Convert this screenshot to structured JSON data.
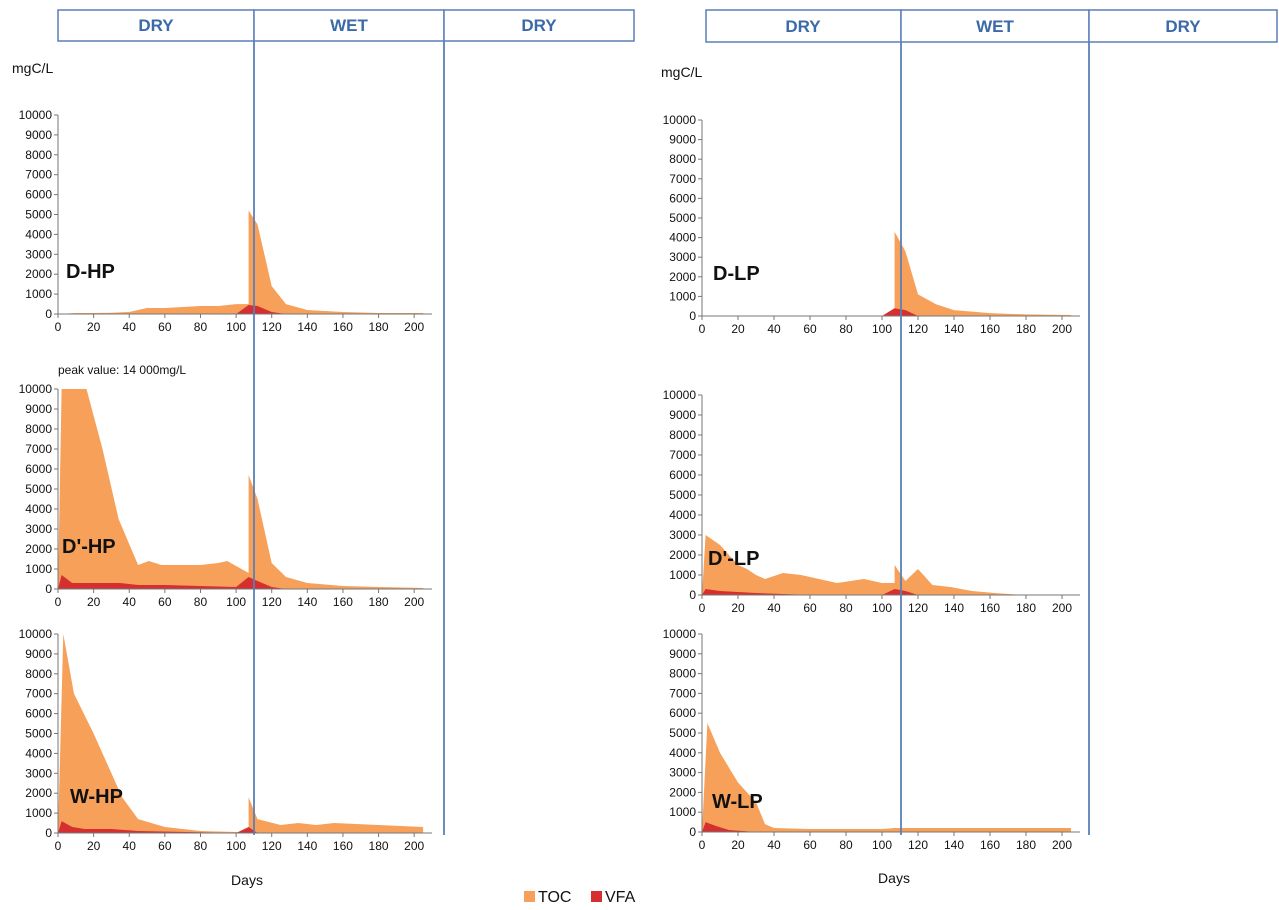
{
  "colors": {
    "toc": "#f7a05a",
    "vfa": "#d62f2f",
    "phase_border": "#5a7fb8",
    "phase_text": "#3b6aa8"
  },
  "header": {
    "left": [
      "DRY",
      "WET",
      "DRY"
    ],
    "right": [
      "DRY",
      "WET",
      "DRY"
    ]
  },
  "annotations": {
    "unit_left": "mgC/L",
    "unit_right": "mgC/L",
    "peak_note": "peak value: 14 000mg/L"
  },
  "xlabel": "Days",
  "legend": [
    {
      "name": "TOC",
      "color": "#f7a05a"
    },
    {
      "name": "VFA",
      "color": "#d62f2f"
    }
  ],
  "chart_data": [
    {
      "id": "D-HP",
      "type": "area",
      "label": "D-HP",
      "xlim": [
        0,
        210
      ],
      "ylim": [
        0,
        10000
      ],
      "xticks": [
        0,
        20,
        40,
        60,
        80,
        100,
        120,
        140,
        160,
        180,
        200
      ],
      "yticks": [
        0,
        1000,
        2000,
        3000,
        4000,
        5000,
        6000,
        7000,
        8000,
        9000,
        10000
      ],
      "series": [
        {
          "name": "TOC",
          "x": [
            0,
            10,
            20,
            30,
            40,
            50,
            60,
            70,
            80,
            90,
            100,
            107,
            107,
            112,
            120,
            128,
            140,
            160,
            180,
            205
          ],
          "values": [
            0,
            50,
            50,
            60,
            100,
            300,
            300,
            350,
            400,
            400,
            500,
            500,
            5200,
            4500,
            1400,
            500,
            200,
            100,
            50,
            50
          ]
        },
        {
          "name": "VFA",
          "x": [
            0,
            100,
            107,
            112,
            120,
            128,
            205
          ],
          "values": [
            0,
            0,
            450,
            400,
            100,
            0,
            0
          ]
        }
      ]
    },
    {
      "id": "D'-HP",
      "type": "area",
      "label": "D'-HP",
      "xlim": [
        0,
        210
      ],
      "ylim": [
        0,
        10000
      ],
      "xticks": [
        0,
        20,
        40,
        60,
        80,
        100,
        120,
        140,
        160,
        180,
        200
      ],
      "yticks": [
        0,
        1000,
        2000,
        3000,
        4000,
        5000,
        6000,
        7000,
        8000,
        9000,
        10000
      ],
      "series": [
        {
          "name": "TOC",
          "x": [
            0,
            2,
            16,
            25,
            34,
            45,
            51,
            58,
            68,
            80,
            90,
            95,
            107,
            107,
            112,
            120,
            128,
            140,
            160,
            180,
            205
          ],
          "values": [
            0,
            10000,
            10000,
            7000,
            3500,
            1200,
            1400,
            1200,
            1200,
            1200,
            1300,
            1400,
            800,
            5700,
            4500,
            1300,
            600,
            300,
            150,
            100,
            50
          ]
        },
        {
          "name": "VFA",
          "x": [
            0,
            2,
            8,
            20,
            35,
            45,
            60,
            80,
            100,
            107,
            112,
            120,
            128,
            205
          ],
          "values": [
            0,
            700,
            300,
            300,
            300,
            200,
            200,
            150,
            100,
            600,
            400,
            100,
            0,
            0
          ]
        }
      ]
    },
    {
      "id": "W-HP",
      "type": "area",
      "label": "W-HP",
      "xlim": [
        0,
        210
      ],
      "ylim": [
        0,
        10000
      ],
      "xticks": [
        0,
        20,
        40,
        60,
        80,
        100,
        120,
        140,
        160,
        180,
        200
      ],
      "yticks": [
        0,
        1000,
        2000,
        3000,
        4000,
        5000,
        6000,
        7000,
        8000,
        9000,
        10000
      ],
      "series": [
        {
          "name": "TOC",
          "x": [
            0,
            3,
            9,
            20,
            30,
            36,
            45,
            60,
            80,
            100,
            107,
            107,
            112,
            125,
            135,
            145,
            155,
            180,
            205
          ],
          "values": [
            0,
            10000,
            7000,
            5000,
            3000,
            1800,
            700,
            300,
            100,
            50,
            50,
            1800,
            700,
            400,
            500,
            400,
            500,
            400,
            300
          ]
        },
        {
          "name": "VFA",
          "x": [
            0,
            2,
            8,
            15,
            30,
            45,
            100,
            107,
            112,
            205
          ],
          "values": [
            0,
            600,
            300,
            200,
            200,
            100,
            0,
            300,
            0,
            0
          ]
        }
      ]
    },
    {
      "id": "D-LP",
      "type": "area",
      "label": "D-LP",
      "xlim": [
        0,
        210
      ],
      "ylim": [
        0,
        10000
      ],
      "xticks": [
        0,
        20,
        40,
        60,
        80,
        100,
        120,
        140,
        160,
        180,
        200
      ],
      "yticks": [
        0,
        1000,
        2000,
        3000,
        4000,
        5000,
        6000,
        7000,
        8000,
        9000,
        10000
      ],
      "series": [
        {
          "name": "TOC",
          "x": [
            0,
            100,
            107,
            107,
            113,
            120,
            130,
            140,
            160,
            180,
            205
          ],
          "values": [
            0,
            0,
            100,
            4300,
            3300,
            1100,
            600,
            300,
            150,
            80,
            50
          ]
        },
        {
          "name": "VFA",
          "x": [
            0,
            100,
            107,
            113,
            120,
            205
          ],
          "values": [
            0,
            0,
            400,
            300,
            0,
            0
          ]
        }
      ]
    },
    {
      "id": "D'-LP",
      "type": "area",
      "label": "D'-LP",
      "xlim": [
        0,
        210
      ],
      "ylim": [
        0,
        10000
      ],
      "xticks": [
        0,
        20,
        40,
        60,
        80,
        100,
        120,
        140,
        160,
        180,
        200
      ],
      "yticks": [
        0,
        1000,
        2000,
        3000,
        4000,
        5000,
        6000,
        7000,
        8000,
        9000,
        10000
      ],
      "series": [
        {
          "name": "TOC",
          "x": [
            0,
            2,
            10,
            20,
            25,
            30,
            35,
            45,
            55,
            65,
            75,
            90,
            100,
            107,
            107,
            113,
            120,
            128,
            138,
            150,
            165,
            180,
            205
          ],
          "values": [
            0,
            3000,
            2500,
            1500,
            1300,
            1000,
            800,
            1100,
            1000,
            800,
            600,
            800,
            600,
            600,
            1500,
            700,
            1300,
            500,
            400,
            200,
            80,
            0,
            0
          ]
        },
        {
          "name": "VFA",
          "x": [
            0,
            2,
            10,
            30,
            60,
            100,
            107,
            113,
            120,
            205
          ],
          "values": [
            0,
            300,
            200,
            100,
            0,
            0,
            300,
            200,
            0,
            0
          ]
        }
      ]
    },
    {
      "id": "W-LP",
      "type": "area",
      "label": "W-LP",
      "xlim": [
        0,
        210
      ],
      "ylim": [
        0,
        10000
      ],
      "xticks": [
        0,
        20,
        40,
        60,
        80,
        100,
        120,
        140,
        160,
        180,
        200
      ],
      "yticks": [
        0,
        1000,
        2000,
        3000,
        4000,
        5000,
        6000,
        7000,
        8000,
        9000,
        10000
      ],
      "series": [
        {
          "name": "TOC",
          "x": [
            0,
            3,
            10,
            20,
            30,
            35,
            40,
            60,
            80,
            100,
            107,
            140,
            180,
            205
          ],
          "values": [
            0,
            5500,
            4000,
            2500,
            1500,
            400,
            200,
            150,
            150,
            150,
            200,
            200,
            200,
            200
          ]
        },
        {
          "name": "VFA",
          "x": [
            0,
            2,
            8,
            15,
            30,
            205
          ],
          "values": [
            0,
            500,
            300,
            100,
            0,
            0
          ]
        }
      ]
    }
  ]
}
